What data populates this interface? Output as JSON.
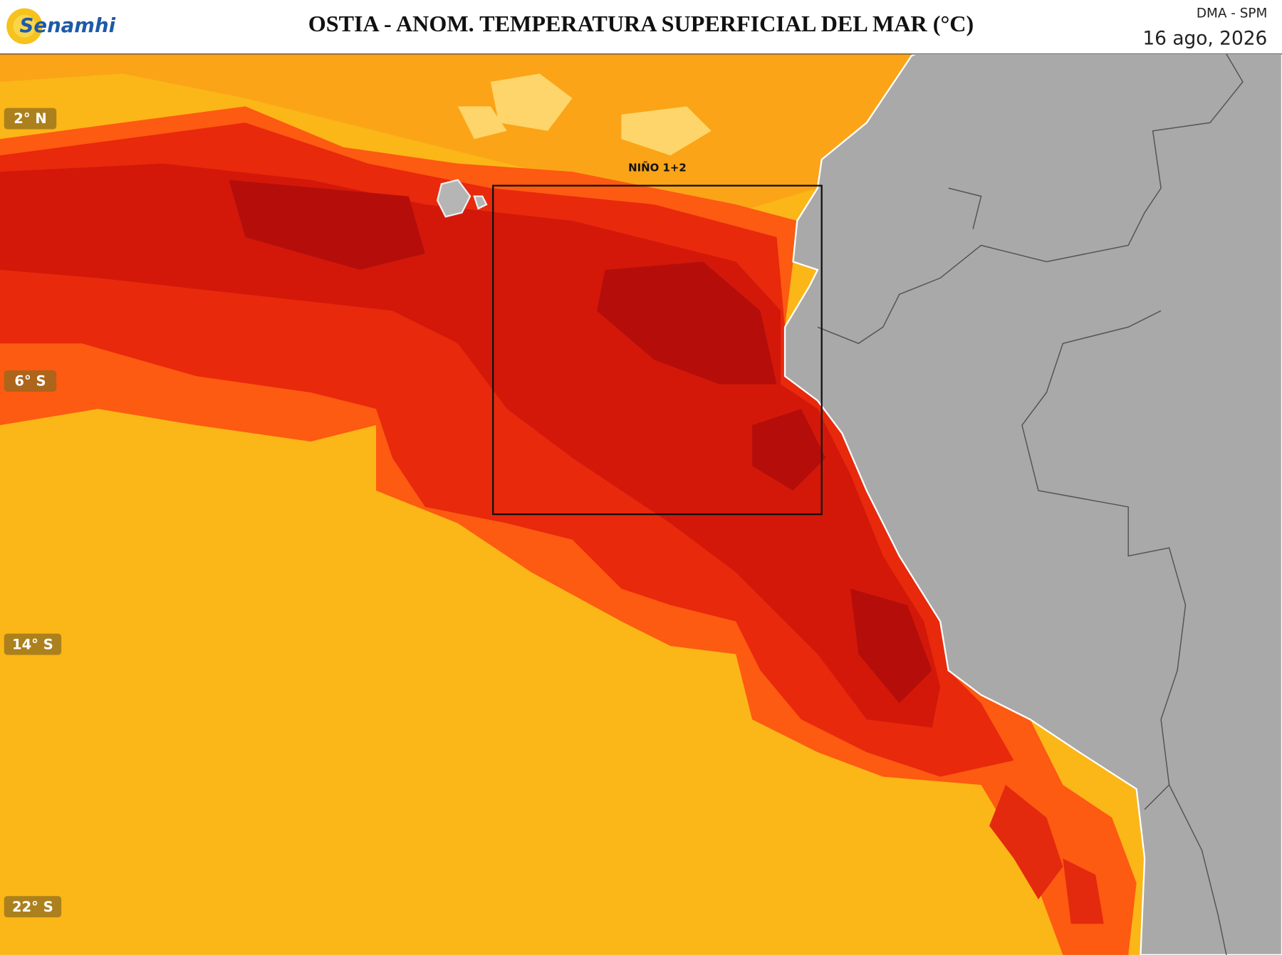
{
  "header": {
    "logo": "Senamhi",
    "title": "OSTIA - ANOM. TEMPERATURA SUPERFICIAL DEL MAR (°C)",
    "agency": "DMA - SPM",
    "date": "16 ago, 2026"
  },
  "map": {
    "region_label": "NIÑO 1+2",
    "latitude_labels": [
      "2° N",
      "6° S",
      "14° S",
      "22° S"
    ]
  }
}
